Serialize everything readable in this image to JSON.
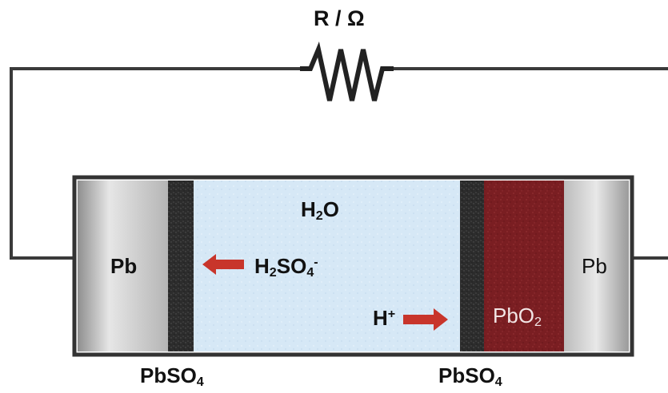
{
  "resistor": {
    "label": "R / Ω"
  },
  "cell": {
    "left_electrode": "Pb",
    "right_electrode": "Pb",
    "electrolyte_species": "H",
    "electrolyte_species_sub": "2",
    "electrolyte_species_tail": "O",
    "anion_1": "H",
    "anion_sub_1": "2",
    "anion_2": "SO",
    "anion_sub_2": "4",
    "anion_charge": "-",
    "cation": "H",
    "cation_charge": "+",
    "cathode_material": "PbO",
    "cathode_material_sub": "2",
    "left_layer_label": "PbSO",
    "left_layer_sub": "4",
    "right_layer_label": "PbSO",
    "right_layer_sub": "4"
  },
  "colors": {
    "wire": "#3a3a3a",
    "electrolyte": "#d6e8f6",
    "sulfate_layer": "#2e2e2e",
    "lead_dioxide": "#7a1e22",
    "lead_plate": "#c9c9c9",
    "arrow": "#c8352b"
  }
}
